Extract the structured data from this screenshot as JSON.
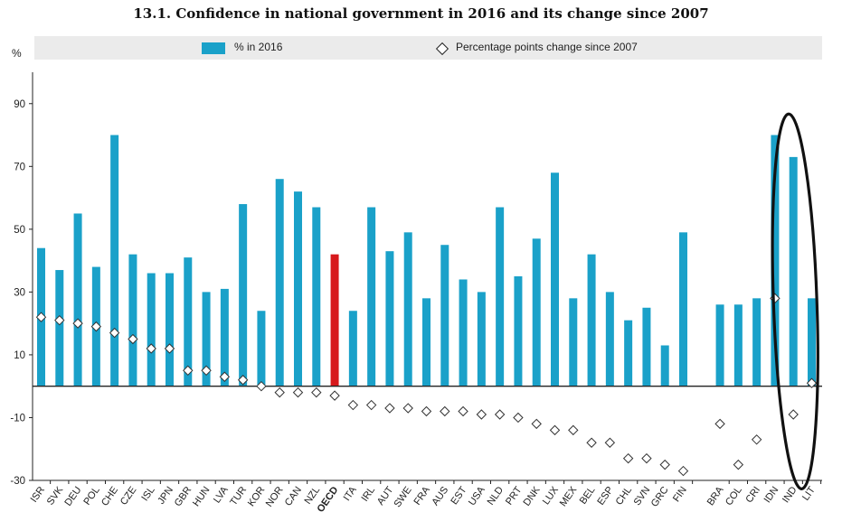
{
  "chart_data": {
    "type": "bar",
    "title": "13.1. Confidence in national government in 2016 and its change since 2007",
    "ylabel": "%",
    "ylim": [
      -30,
      100
    ],
    "yticks": [
      90,
      70,
      50,
      30,
      10,
      -10,
      -30
    ],
    "legend": {
      "position": "top",
      "entries": [
        "% in 2016",
        "Percentage points change since 2007"
      ]
    },
    "colors": {
      "bar": "#1aa1c9",
      "highlight": "#d7191c",
      "diamond_fill": "#ffffff",
      "diamond_stroke": "#333333",
      "oval": "#111111"
    },
    "highlight_category": "OECD",
    "categories": [
      "ISR",
      "SVK",
      "DEU",
      "POL",
      "CHE",
      "CZE",
      "ISL",
      "JPN",
      "GBR",
      "HUN",
      "LVA",
      "TUR",
      "KOR",
      "NOR",
      "CAN",
      "NZL",
      "OECD",
      "ITA",
      "IRL",
      "AUT",
      "SWE",
      "FRA",
      "AUS",
      "EST",
      "USA",
      "NLD",
      "PRT",
      "DNK",
      "LUX",
      "MEX",
      "BEL",
      "ESP",
      "CHL",
      "SVN",
      "GRC",
      "FIN",
      "",
      "BRA",
      "COL",
      "CRI",
      "IDN",
      "IND",
      "LIT"
    ],
    "series": [
      {
        "name": "% in 2016",
        "kind": "bar",
        "values": [
          44,
          37,
          55,
          38,
          80,
          42,
          36,
          36,
          41,
          30,
          31,
          58,
          24,
          66,
          62,
          57,
          42,
          24,
          57,
          43,
          49,
          28,
          45,
          34,
          30,
          57,
          35,
          47,
          68,
          28,
          42,
          30,
          21,
          25,
          13,
          49,
          null,
          26,
          26,
          28,
          80,
          73,
          28
        ]
      },
      {
        "name": "Percentage points change since 2007",
        "kind": "marker",
        "values": [
          22,
          21,
          20,
          19,
          17,
          15,
          12,
          12,
          5,
          5,
          3,
          2,
          0,
          -2,
          -2,
          -2,
          -3,
          -6,
          -6,
          -7,
          -7,
          -8,
          -8,
          -8,
          -9,
          -9,
          -10,
          -12,
          -14,
          -14,
          -18,
          -18,
          -23,
          -23,
          -25,
          -27,
          null,
          -12,
          -25,
          -17,
          28,
          -9,
          1
        ]
      }
    ],
    "annotations": [
      "oval around IDN, IND, LIT"
    ]
  }
}
